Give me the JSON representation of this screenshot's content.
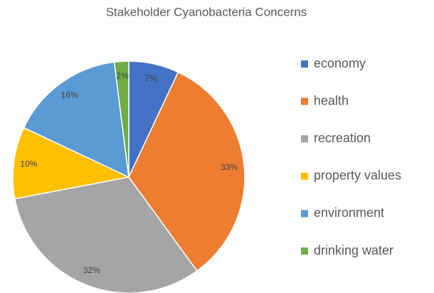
{
  "chart_data": {
    "type": "pie",
    "title": "Stakeholder Cyanobacteria Concerns",
    "categories": [
      "economy",
      "health",
      "recreation",
      "property values",
      "environment",
      "drinking water"
    ],
    "values": [
      7,
      33,
      32,
      10,
      16,
      2
    ],
    "value_labels": [
      "7%",
      "33%",
      "32%",
      "10%",
      "16%",
      "2%"
    ],
    "colors": [
      "#4472c4",
      "#ed7d31",
      "#a5a5a5",
      "#ffc000",
      "#5b9bd5",
      "#70ad47"
    ],
    "legend": "right"
  }
}
